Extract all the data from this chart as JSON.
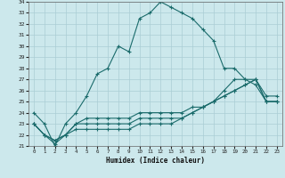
{
  "xlabel": "Humidex (Indice chaleur)",
  "ylabel": "",
  "xlim": [
    -0.5,
    23.5
  ],
  "ylim": [
    21,
    34
  ],
  "yticks": [
    21,
    22,
    23,
    24,
    25,
    26,
    27,
    28,
    29,
    30,
    31,
    32,
    33,
    34
  ],
  "xticks": [
    0,
    1,
    2,
    3,
    4,
    5,
    6,
    7,
    8,
    9,
    10,
    11,
    12,
    13,
    14,
    15,
    16,
    17,
    18,
    19,
    20,
    21,
    22,
    23
  ],
  "bg_color": "#cce8ec",
  "grid_color": "#aacdd4",
  "line_color": "#1a6b6b",
  "lines": [
    {
      "x": [
        0,
        1,
        2,
        3,
        4,
        5,
        6,
        7,
        8,
        9,
        10,
        11,
        12,
        13,
        14,
        15,
        16,
        17,
        18,
        19,
        20,
        21,
        22,
        23
      ],
      "y": [
        24,
        23,
        21,
        23,
        24,
        25.5,
        27.5,
        28,
        30,
        29.5,
        32.5,
        33,
        34,
        33.5,
        33,
        32.5,
        31.5,
        30.5,
        28,
        28,
        27,
        26.5,
        25,
        25
      ]
    },
    {
      "x": [
        0,
        1,
        2,
        3,
        4,
        5,
        6,
        7,
        8,
        9,
        10,
        11,
        12,
        13,
        14,
        15,
        16,
        17,
        18,
        19,
        20,
        21,
        22,
        23
      ],
      "y": [
        23,
        22,
        21.5,
        22,
        23,
        23.5,
        23.5,
        23.5,
        23.5,
        23.5,
        24,
        24,
        24,
        24,
        24,
        24.5,
        24.5,
        25,
        25.5,
        26,
        26.5,
        27,
        25,
        25
      ]
    },
    {
      "x": [
        0,
        1,
        2,
        3,
        4,
        5,
        6,
        7,
        8,
        9,
        10,
        11,
        12,
        13,
        14,
        15,
        16,
        17,
        18,
        19,
        20,
        21,
        22,
        23
      ],
      "y": [
        23,
        22,
        21.5,
        22,
        23,
        23,
        23,
        23,
        23,
        23,
        23.5,
        23.5,
        23.5,
        23.5,
        23.5,
        24,
        24.5,
        25,
        26,
        27,
        27,
        27,
        25,
        25
      ]
    },
    {
      "x": [
        0,
        1,
        2,
        3,
        4,
        5,
        6,
        7,
        8,
        9,
        10,
        11,
        12,
        13,
        14,
        15,
        16,
        17,
        18,
        19,
        20,
        21,
        22,
        23
      ],
      "y": [
        23,
        22,
        21.2,
        22,
        22.5,
        22.5,
        22.5,
        22.5,
        22.5,
        22.5,
        23,
        23,
        23,
        23,
        23.5,
        24,
        24.5,
        25,
        25.5,
        26,
        26.5,
        27,
        25.5,
        25.5
      ]
    }
  ]
}
